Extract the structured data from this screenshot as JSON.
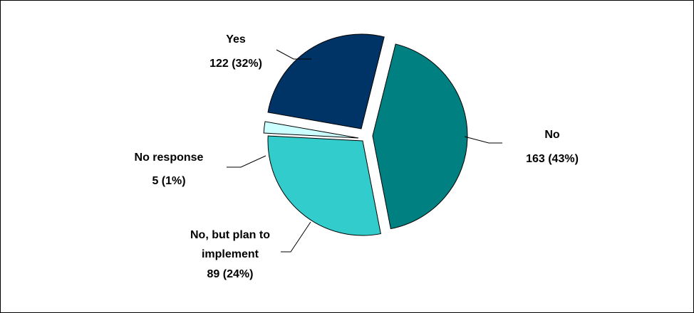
{
  "chart_data": {
    "type": "pie",
    "title": "",
    "exploded": true,
    "slices": [
      {
        "key": "yes",
        "name": "Yes",
        "count": 122,
        "pct_label": "122  (32%)",
        "value": 32,
        "color": "#003366"
      },
      {
        "key": "no",
        "name": "No",
        "count": 163,
        "pct_label": "163  (43%)",
        "value": 43,
        "color": "#008080"
      },
      {
        "key": "plan",
        "name_lines": [
          "No, but plan to",
          "implement"
        ],
        "count": 89,
        "pct_label": "89  (24%)",
        "value": 24,
        "color": "#33CCCC"
      },
      {
        "key": "noresp",
        "name": "No response",
        "count": 5,
        "pct_label": "5  (1%)",
        "value": 1,
        "color": "#CCFFFF"
      }
    ]
  }
}
